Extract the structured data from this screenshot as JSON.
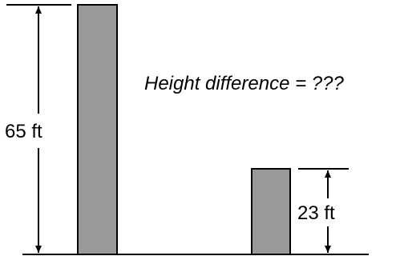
{
  "diagram": {
    "title": "Height difference = ???",
    "tall_label": "65 ft",
    "short_label": "23 ft",
    "tall_value": 65,
    "short_value": 23,
    "unit": "ft",
    "colors": {
      "bar_fill": "#999999",
      "stroke": "#000000",
      "background": "#ffffff"
    }
  }
}
